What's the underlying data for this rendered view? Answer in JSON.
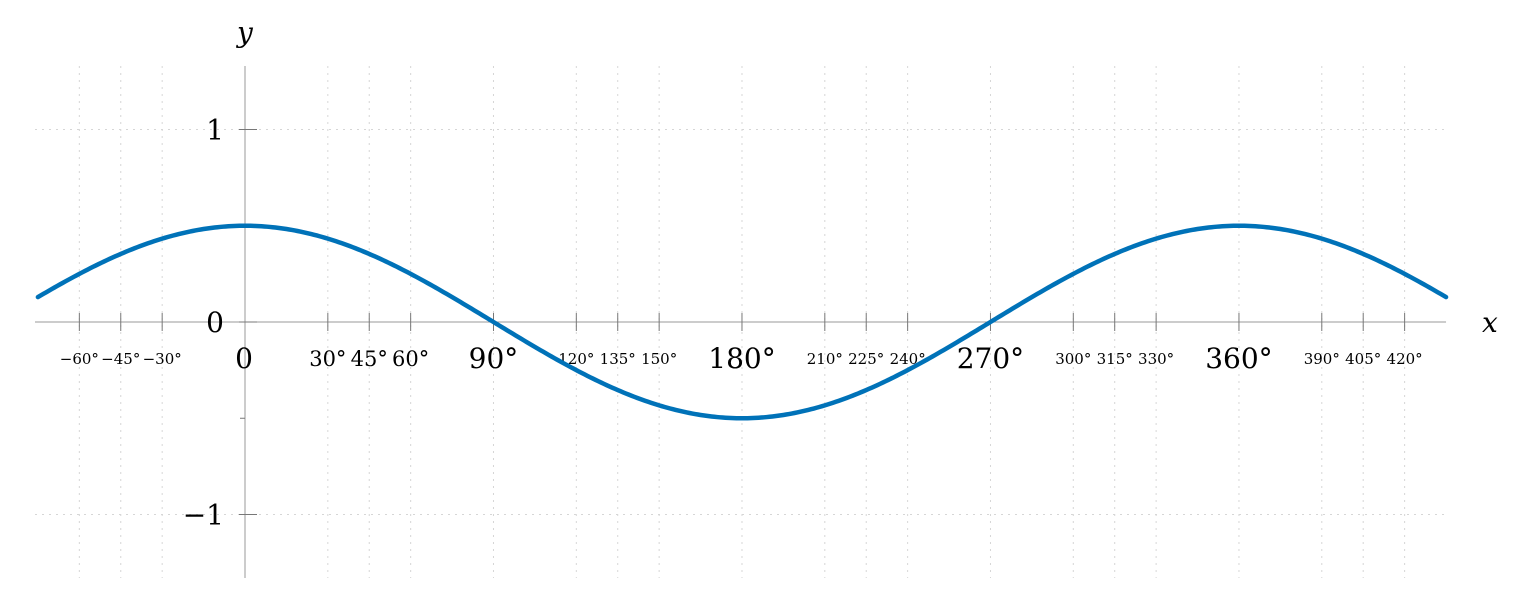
{
  "chart_data": {
    "type": "line",
    "title": "",
    "xlabel": "x",
    "ylabel": "y",
    "xlim": [
      -75,
      435
    ],
    "ylim": [
      -1.33,
      1.33
    ],
    "grid": true,
    "function": "0.5*cos(x)",
    "colors": {
      "series": "#0072b8",
      "axis": "#9a9a9a",
      "grid": "#d6d6d6"
    },
    "x_ticks": [
      {
        "value": -60,
        "label": "−60°",
        "size": "small"
      },
      {
        "value": -45,
        "label": "−45°",
        "size": "small"
      },
      {
        "value": -30,
        "label": "−30°",
        "size": "small"
      },
      {
        "value": 0,
        "label": "0",
        "size": "large"
      },
      {
        "value": 30,
        "label": "30°",
        "size": "medium"
      },
      {
        "value": 45,
        "label": "45°",
        "size": "medium"
      },
      {
        "value": 60,
        "label": "60°",
        "size": "medium"
      },
      {
        "value": 90,
        "label": "90°",
        "size": "large"
      },
      {
        "value": 120,
        "label": "120°",
        "size": "small"
      },
      {
        "value": 135,
        "label": "135°",
        "size": "small"
      },
      {
        "value": 150,
        "label": "150°",
        "size": "small"
      },
      {
        "value": 180,
        "label": "180°",
        "size": "large"
      },
      {
        "value": 210,
        "label": "210°",
        "size": "small"
      },
      {
        "value": 225,
        "label": "225°",
        "size": "small"
      },
      {
        "value": 240,
        "label": "240°",
        "size": "small"
      },
      {
        "value": 270,
        "label": "270°",
        "size": "large"
      },
      {
        "value": 300,
        "label": "300°",
        "size": "small"
      },
      {
        "value": 315,
        "label": "315°",
        "size": "small"
      },
      {
        "value": 330,
        "label": "330°",
        "size": "small"
      },
      {
        "value": 360,
        "label": "360°",
        "size": "large"
      },
      {
        "value": 390,
        "label": "390°",
        "size": "small"
      },
      {
        "value": 405,
        "label": "405°",
        "size": "small"
      },
      {
        "value": 420,
        "label": "420°",
        "size": "small"
      }
    ],
    "y_ticks": [
      {
        "value": 1,
        "label": "1"
      },
      {
        "value": 0,
        "label": "0"
      },
      {
        "value": -0.5,
        "label": ""
      },
      {
        "value": -1,
        "label": "−1"
      }
    ],
    "series": [
      {
        "x": [
          -75,
          -60,
          -45,
          -30,
          -15,
          0,
          15,
          30,
          45,
          60,
          75,
          90,
          105,
          120,
          135,
          150,
          165,
          180,
          195,
          210,
          225,
          240,
          255,
          270,
          285,
          300,
          315,
          330,
          345,
          360,
          375,
          390,
          405,
          420,
          435
        ],
        "y": [
          0.129,
          0.25,
          0.354,
          0.433,
          0.483,
          0.5,
          0.483,
          0.433,
          0.354,
          0.25,
          0.129,
          0,
          -0.129,
          -0.25,
          -0.354,
          -0.433,
          -0.483,
          -0.5,
          -0.483,
          -0.433,
          -0.354,
          -0.25,
          -0.129,
          0,
          0.129,
          0.25,
          0.354,
          0.433,
          0.483,
          0.5,
          0.483,
          0.433,
          0.354,
          0.25,
          0.129
        ]
      }
    ]
  }
}
